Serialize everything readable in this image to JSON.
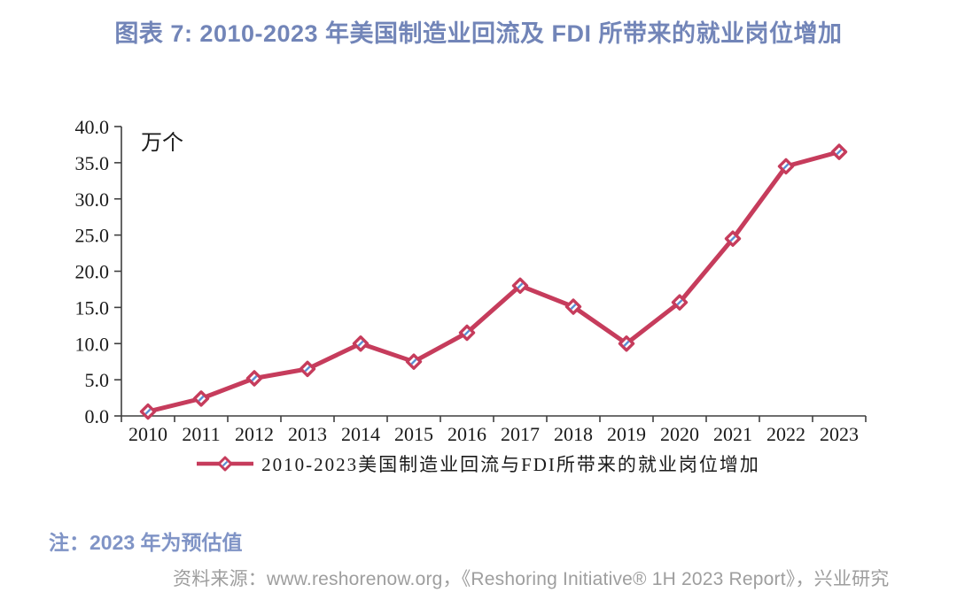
{
  "title": "图表 7: 2010-2023 年美国制造业回流及 FDI 所带来的就业岗位增加",
  "note": "注：2023 年为预估值",
  "source": "资料来源：www.reshorenow.org，《Reshoring Initiative® 1H 2023 Report》，兴业研究",
  "colors": {
    "line": "#C63C5C",
    "marker_fill": "#FFFFFF",
    "marker_slash": "#5B8FD4",
    "title_blue": "#7285B8",
    "note_blue": "#8094C6",
    "source_gray": "#9E9E9E",
    "axis": "#3F3F3F",
    "label_text": "#1a1a1a"
  },
  "chart_data": {
    "type": "line",
    "title": "图表 7: 2010-2023 年美国制造业回流及 FDI 所带来的就业岗位增加",
    "legend": "2010-2023美国制造业回流与FDI所带来的就业岗位增加",
    "unit_label": "万个",
    "xlabel": "",
    "ylabel": "万个",
    "x": [
      "2010",
      "2011",
      "2012",
      "2013",
      "2014",
      "2015",
      "2016",
      "2017",
      "2018",
      "2019",
      "2020",
      "2021",
      "2022",
      "2023"
    ],
    "values": [
      0.6,
      2.4,
      5.2,
      6.5,
      10.0,
      7.5,
      11.5,
      18.0,
      15.1,
      10.0,
      15.7,
      24.5,
      34.5,
      36.5
    ],
    "ylim": [
      0,
      40
    ],
    "y_ticks": [
      0,
      5,
      10,
      15,
      20,
      25,
      30,
      35,
      40
    ],
    "grid": false,
    "legend_position": "bottom"
  }
}
